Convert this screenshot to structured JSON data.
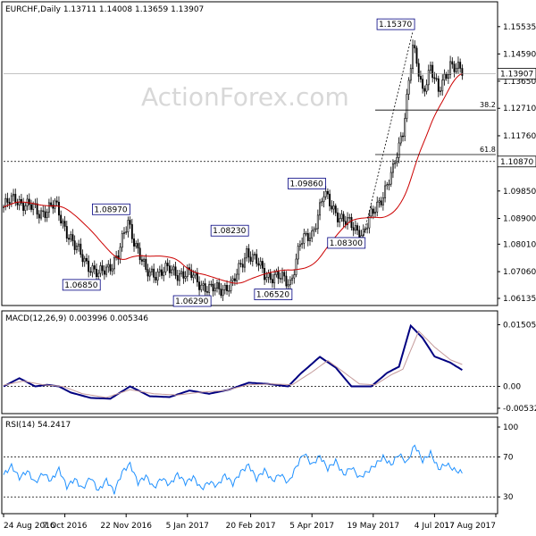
{
  "chart_data": [
    {
      "type": "candlestick",
      "panel": "price",
      "title": "EURCHF,Daily",
      "ohlc_header": "1.13711 1.14008 1.13659 1.13907",
      "ylim": [
        1.0595,
        1.159
      ],
      "y_ticks": [
        1.15535,
        1.1459,
        1.1365,
        1.1271,
        1.1176,
        1.0985,
        1.089,
        1.0801,
        1.0706,
        1.06135
      ],
      "y_tick_labels": [
        "1.15535",
        "1.14590",
        "1.13650",
        "1.12710",
        "1.11760",
        "1.09850",
        "1.08900",
        "1.08010",
        "1.07060",
        "1.06135"
      ],
      "last_price": 1.13907,
      "last_price_label": "1.13907",
      "support_level": 1.1087,
      "support_level_label": "1.10870",
      "price_labels": [
        {
          "text": "1.15370",
          "value": 1.1537,
          "bar": 207
        },
        {
          "text": "1.09860",
          "value": 1.0986,
          "bar": 162
        },
        {
          "text": "1.08970",
          "value": 1.0897,
          "bar": 63
        },
        {
          "text": "1.08230",
          "value": 1.0823,
          "bar": 123
        },
        {
          "text": "1.08300",
          "value": 1.083,
          "bar": 182
        },
        {
          "text": "1.06850",
          "value": 1.0685,
          "bar": 48
        },
        {
          "text": "1.06520",
          "value": 1.0652,
          "bar": 145
        },
        {
          "text": "1.06290",
          "value": 1.0629,
          "bar": 104
        }
      ],
      "fib_levels": [
        {
          "label": "38.2",
          "value": 1.1265
        },
        {
          "label": "61.8",
          "value": 1.1111
        }
      ],
      "moving_average_color": "#cc0000",
      "candle_color": "#000000",
      "key_points": [
        {
          "bar": 0,
          "close": 1.093
        },
        {
          "bar": 6,
          "close": 1.096
        },
        {
          "bar": 18,
          "close": 1.091
        },
        {
          "bar": 26,
          "close": 1.0935
        },
        {
          "bar": 36,
          "close": 1.079
        },
        {
          "bar": 48,
          "close": 1.069
        },
        {
          "bar": 58,
          "close": 1.076
        },
        {
          "bar": 63,
          "close": 1.088
        },
        {
          "bar": 72,
          "close": 1.07
        },
        {
          "bar": 84,
          "close": 1.071
        },
        {
          "bar": 96,
          "close": 1.069
        },
        {
          "bar": 104,
          "close": 1.064
        },
        {
          "bar": 116,
          "close": 1.066
        },
        {
          "bar": 123,
          "close": 1.078
        },
        {
          "bar": 132,
          "close": 1.07
        },
        {
          "bar": 145,
          "close": 1.067
        },
        {
          "bar": 150,
          "close": 1.08
        },
        {
          "bar": 156,
          "close": 1.084
        },
        {
          "bar": 162,
          "close": 1.097
        },
        {
          "bar": 172,
          "close": 1.088
        },
        {
          "bar": 182,
          "close": 1.084
        },
        {
          "bar": 190,
          "close": 1.095
        },
        {
          "bar": 197,
          "close": 1.105
        },
        {
          "bar": 202,
          "close": 1.12
        },
        {
          "bar": 207,
          "close": 1.148
        },
        {
          "bar": 212,
          "close": 1.133
        },
        {
          "bar": 216,
          "close": 1.142
        },
        {
          "bar": 220,
          "close": 1.132
        },
        {
          "bar": 226,
          "close": 1.143
        },
        {
          "bar": 232,
          "close": 1.1391
        }
      ]
    },
    {
      "type": "line",
      "panel": "macd",
      "title": "MACD(12,26,9) 0.003996 0.005346",
      "ylim": [
        -0.0062,
        0.0158
      ],
      "y_ticks": [
        0.015052,
        0.0,
        -0.005321
      ],
      "y_tick_labels": [
        "0.015052",
        "0.00",
        "-0.005321"
      ],
      "zero_line": 0.0,
      "series": [
        {
          "role": "macd",
          "color": "#000080",
          "points": [
            {
              "bar": 0,
              "value": 0.0
            },
            {
              "bar": 8,
              "value": 0.002
            },
            {
              "bar": 16,
              "value": 0.0
            },
            {
              "bar": 22,
              "value": 0.0004
            },
            {
              "bar": 28,
              "value": 0.0
            },
            {
              "bar": 34,
              "value": -0.0015
            },
            {
              "bar": 44,
              "value": -0.0028
            },
            {
              "bar": 54,
              "value": -0.003
            },
            {
              "bar": 64,
              "value": 0.0
            },
            {
              "bar": 74,
              "value": -0.0024
            },
            {
              "bar": 84,
              "value": -0.0026
            },
            {
              "bar": 94,
              "value": -0.001
            },
            {
              "bar": 104,
              "value": -0.0018
            },
            {
              "bar": 114,
              "value": -0.0008
            },
            {
              "bar": 124,
              "value": 0.0009
            },
            {
              "bar": 134,
              "value": 0.0006
            },
            {
              "bar": 144,
              "value": 0.0
            },
            {
              "bar": 150,
              "value": 0.003
            },
            {
              "bar": 160,
              "value": 0.0072
            },
            {
              "bar": 168,
              "value": 0.0046
            },
            {
              "bar": 176,
              "value": 0.0
            },
            {
              "bar": 186,
              "value": 0.0
            },
            {
              "bar": 194,
              "value": 0.0033
            },
            {
              "bar": 200,
              "value": 0.0048
            },
            {
              "bar": 206,
              "value": 0.0148
            },
            {
              "bar": 212,
              "value": 0.0118
            },
            {
              "bar": 218,
              "value": 0.0073
            },
            {
              "bar": 226,
              "value": 0.0058
            },
            {
              "bar": 232,
              "value": 0.003996
            }
          ]
        },
        {
          "role": "signal",
          "color": "#c49a9a",
          "points": [
            {
              "bar": 0,
              "value": 0.0003
            },
            {
              "bar": 10,
              "value": 0.0013
            },
            {
              "bar": 20,
              "value": 0.0004
            },
            {
              "bar": 30,
              "value": 0.0
            },
            {
              "bar": 40,
              "value": -0.0018
            },
            {
              "bar": 52,
              "value": -0.0027
            },
            {
              "bar": 64,
              "value": -0.0008
            },
            {
              "bar": 76,
              "value": -0.0018
            },
            {
              "bar": 88,
              "value": -0.0021
            },
            {
              "bar": 100,
              "value": -0.0014
            },
            {
              "bar": 112,
              "value": -0.001
            },
            {
              "bar": 124,
              "value": 0.0004
            },
            {
              "bar": 136,
              "value": 0.0006
            },
            {
              "bar": 146,
              "value": 0.0004
            },
            {
              "bar": 156,
              "value": 0.0035
            },
            {
              "bar": 164,
              "value": 0.0063
            },
            {
              "bar": 172,
              "value": 0.0035
            },
            {
              "bar": 180,
              "value": 0.0006
            },
            {
              "bar": 188,
              "value": 0.0004
            },
            {
              "bar": 196,
              "value": 0.0028
            },
            {
              "bar": 202,
              "value": 0.0042
            },
            {
              "bar": 210,
              "value": 0.0135
            },
            {
              "bar": 218,
              "value": 0.0096
            },
            {
              "bar": 226,
              "value": 0.0065
            },
            {
              "bar": 232,
              "value": 0.005346
            }
          ]
        }
      ]
    },
    {
      "type": "line",
      "panel": "rsi",
      "title": "RSI(14) 54.2417",
      "ylim": [
        15,
        100
      ],
      "y_ticks": [
        100,
        70,
        30
      ],
      "y_tick_labels": [
        "100",
        "70",
        "30"
      ],
      "reference_levels": [
        70,
        30
      ],
      "series": [
        {
          "role": "rsi",
          "color": "#1e90ff",
          "points": [
            {
              "bar": 0,
              "value": 52
            },
            {
              "bar": 4,
              "value": 61
            },
            {
              "bar": 8,
              "value": 49
            },
            {
              "bar": 12,
              "value": 56
            },
            {
              "bar": 16,
              "value": 44
            },
            {
              "bar": 20,
              "value": 54
            },
            {
              "bar": 24,
              "value": 46
            },
            {
              "bar": 28,
              "value": 58
            },
            {
              "bar": 32,
              "value": 40
            },
            {
              "bar": 36,
              "value": 48
            },
            {
              "bar": 40,
              "value": 38
            },
            {
              "bar": 44,
              "value": 50
            },
            {
              "bar": 48,
              "value": 36
            },
            {
              "bar": 52,
              "value": 47
            },
            {
              "bar": 56,
              "value": 35
            },
            {
              "bar": 60,
              "value": 55
            },
            {
              "bar": 64,
              "value": 63
            },
            {
              "bar": 68,
              "value": 44
            },
            {
              "bar": 72,
              "value": 51
            },
            {
              "bar": 76,
              "value": 39
            },
            {
              "bar": 80,
              "value": 49
            },
            {
              "bar": 84,
              "value": 42
            },
            {
              "bar": 88,
              "value": 53
            },
            {
              "bar": 92,
              "value": 44
            },
            {
              "bar": 96,
              "value": 50
            },
            {
              "bar": 100,
              "value": 38
            },
            {
              "bar": 104,
              "value": 45
            },
            {
              "bar": 108,
              "value": 41
            },
            {
              "bar": 112,
              "value": 52
            },
            {
              "bar": 116,
              "value": 43
            },
            {
              "bar": 120,
              "value": 55
            },
            {
              "bar": 124,
              "value": 62
            },
            {
              "bar": 128,
              "value": 48
            },
            {
              "bar": 132,
              "value": 57
            },
            {
              "bar": 136,
              "value": 46
            },
            {
              "bar": 140,
              "value": 53
            },
            {
              "bar": 144,
              "value": 44
            },
            {
              "bar": 148,
              "value": 60
            },
            {
              "bar": 152,
              "value": 74
            },
            {
              "bar": 156,
              "value": 62
            },
            {
              "bar": 160,
              "value": 71
            },
            {
              "bar": 164,
              "value": 58
            },
            {
              "bar": 168,
              "value": 66
            },
            {
              "bar": 172,
              "value": 52
            },
            {
              "bar": 176,
              "value": 60
            },
            {
              "bar": 180,
              "value": 49
            },
            {
              "bar": 184,
              "value": 55
            },
            {
              "bar": 188,
              "value": 62
            },
            {
              "bar": 192,
              "value": 70
            },
            {
              "bar": 196,
              "value": 62
            },
            {
              "bar": 200,
              "value": 73
            },
            {
              "bar": 204,
              "value": 64
            },
            {
              "bar": 208,
              "value": 82
            },
            {
              "bar": 212,
              "value": 66
            },
            {
              "bar": 216,
              "value": 74
            },
            {
              "bar": 220,
              "value": 58
            },
            {
              "bar": 224,
              "value": 63
            },
            {
              "bar": 228,
              "value": 57
            },
            {
              "bar": 232,
              "value": 54.2417
            }
          ]
        }
      ]
    }
  ],
  "x_axis": {
    "tick_labels": [
      "24 Aug 2016",
      "7 Oct 2016",
      "22 Nov 2016",
      "5 Jan 2017",
      "20 Feb 2017",
      "5 Apr 2017",
      "19 May 2017",
      "4 Jul 2017",
      "17 Aug 2017"
    ],
    "tick_bars": [
      0,
      31,
      62,
      93,
      125,
      156,
      187,
      218,
      249
    ]
  },
  "watermark": "ActionForex.com"
}
